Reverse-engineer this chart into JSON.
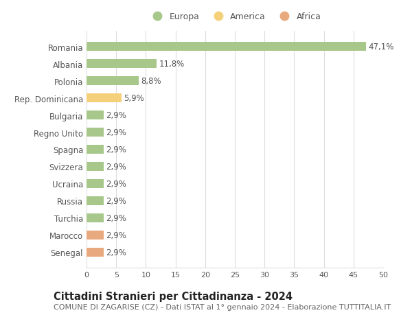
{
  "categories": [
    "Senegal",
    "Marocco",
    "Turchia",
    "Russia",
    "Ucraina",
    "Svizzera",
    "Spagna",
    "Regno Unito",
    "Bulgaria",
    "Rep. Dominicana",
    "Polonia",
    "Albania",
    "Romania"
  ],
  "values": [
    2.9,
    2.9,
    2.9,
    2.9,
    2.9,
    2.9,
    2.9,
    2.9,
    2.9,
    5.9,
    8.8,
    11.8,
    47.1
  ],
  "colors": [
    "#e8a97e",
    "#e8a97e",
    "#a8c78a",
    "#a8c78a",
    "#a8c78a",
    "#a8c78a",
    "#a8c78a",
    "#a8c78a",
    "#a8c78a",
    "#f5d07a",
    "#a8c78a",
    "#a8c78a",
    "#a8c78a"
  ],
  "labels": [
    "2,9%",
    "2,9%",
    "2,9%",
    "2,9%",
    "2,9%",
    "2,9%",
    "2,9%",
    "2,9%",
    "2,9%",
    "5,9%",
    "8,8%",
    "11,8%",
    "47,1%"
  ],
  "legend": [
    {
      "label": "Europa",
      "color": "#a8c78a"
    },
    {
      "label": "America",
      "color": "#f5d07a"
    },
    {
      "label": "Africa",
      "color": "#e8a97e"
    }
  ],
  "title": "Cittadini Stranieri per Cittadinanza - 2024",
  "subtitle": "COMUNE DI ZAGARISE (CZ) - Dati ISTAT al 1° gennaio 2024 - Elaborazione TUTTITALIA.IT",
  "xlim": [
    0,
    50
  ],
  "xticks": [
    0,
    5,
    10,
    15,
    20,
    25,
    30,
    35,
    40,
    45,
    50
  ],
  "background_color": "#ffffff",
  "grid_color": "#dddddd",
  "bar_height": 0.55,
  "label_fontsize": 8.5,
  "title_fontsize": 10.5,
  "subtitle_fontsize": 8,
  "legend_fontsize": 9,
  "ytick_fontsize": 8.5,
  "xtick_fontsize": 8
}
